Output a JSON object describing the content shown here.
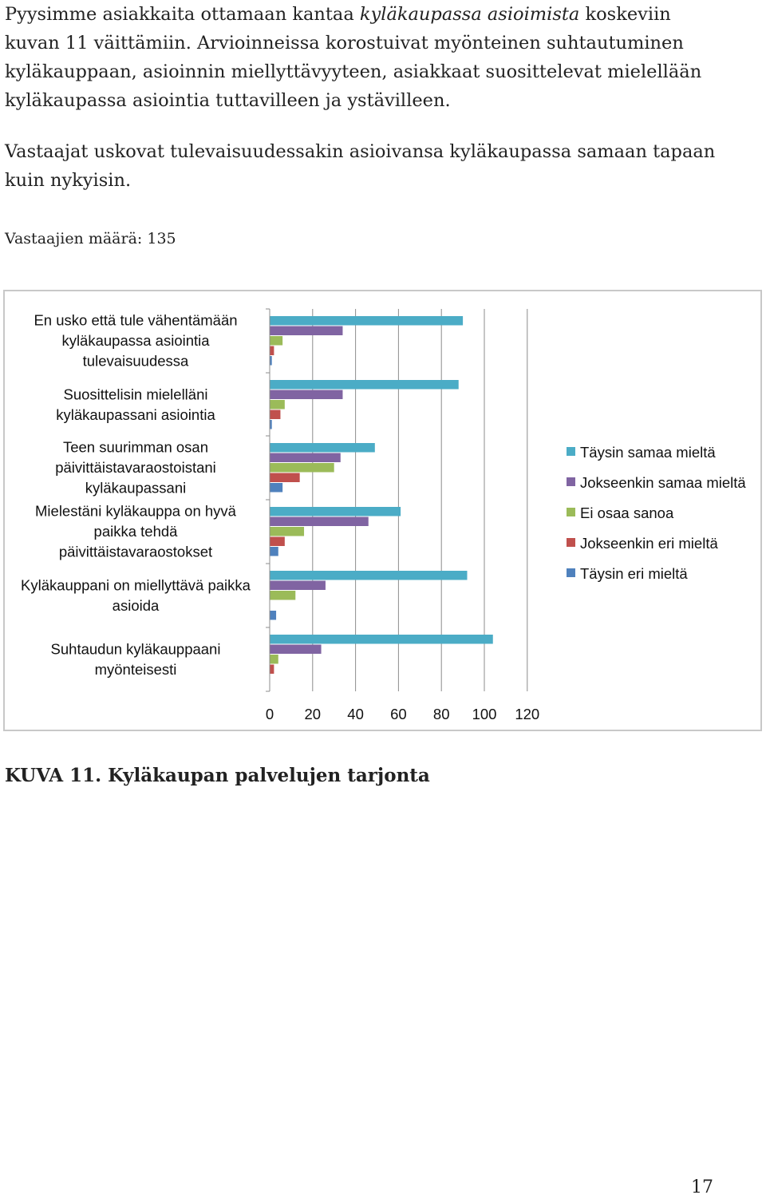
{
  "text": {
    "para1_start": "Pyysimme asiakkaita ottamaan kantaa ",
    "para1_italic": "kyläkaupassa asioimista",
    "para1_rest": " koskeviin kuvan 11 väittämiin. Arvioinneissa korostuivat myönteinen suhtautuminen kyläkauppaan, asioinnin miellyttävyyteen, asiakkaat suosittelevat mielellään kyläkaupassa asiointia tuttavilleen ja ystävilleen.",
    "para2": "Vastaajat uskovat tulevaisuudessakin asioivansa kyläkaupassa samaan tapaan kuin nykyisin.",
    "respondents_label": "Vastaajien määrä: 135",
    "caption": "KUVA 11. Kyläkaupan palvelujen tarjonta",
    "page_number": "17"
  },
  "chart_data": {
    "type": "bar",
    "orientation": "horizontal",
    "categories": [
      "En usko että tule vähentämään kyläkaupassa asiointia tulevaisuudessa",
      "Suosittelisin mielelläni kyläkaupassani asiointia",
      "Teen suurimman osan päivittäistavaraostoistani kyläkaupassani",
      "Mielestäni kyläkauppa on hyvä paikka tehdä päivittäistavaraostokset",
      "Kyläkauppani on miellyttävä paikka asioida",
      "Suhtaudun kyläkauppaani myönteisesti"
    ],
    "category_lines": [
      [
        "En usko että tule vähentämään",
        "kyläkaupassa asiointia",
        "tulevaisuudessa"
      ],
      [
        "Suosittelisin mielelläni",
        "kyläkaupassani asiointia"
      ],
      [
        "Teen suurimman osan",
        "päivittäistavaraostoistani",
        "kyläkaupassani"
      ],
      [
        "Mielestäni kyläkauppa on hyvä",
        "paikka tehdä",
        "päivittäistavaraostokset"
      ],
      [
        "Kyläkauppani on miellyttävä paikka",
        "asioida"
      ],
      [
        "Suhtaudun kyläkauppaani",
        "myönteisesti"
      ]
    ],
    "series": [
      {
        "name": "Täysin samaa mieltä",
        "color": "#4bacc6",
        "values": [
          90,
          88,
          49,
          61,
          92,
          104
        ]
      },
      {
        "name": "Jokseenkin samaa mieltä",
        "color": "#8064a2",
        "values": [
          34,
          34,
          33,
          46,
          26,
          24
        ]
      },
      {
        "name": "Ei osaa sanoa",
        "color": "#9bbb59",
        "values": [
          6,
          7,
          30,
          16,
          12,
          4
        ]
      },
      {
        "name": "Jokseenkin eri mieltä",
        "color": "#c0504d",
        "values": [
          2,
          5,
          14,
          7,
          0,
          2
        ]
      },
      {
        "name": "Täysin eri mieltä",
        "color": "#4f81bd",
        "values": [
          1,
          1,
          6,
          4,
          3,
          0
        ]
      }
    ],
    "xlim": [
      0,
      120
    ],
    "xticks": [
      0,
      20,
      40,
      60,
      80,
      100,
      120
    ],
    "grid": true,
    "legend_position": "right"
  }
}
